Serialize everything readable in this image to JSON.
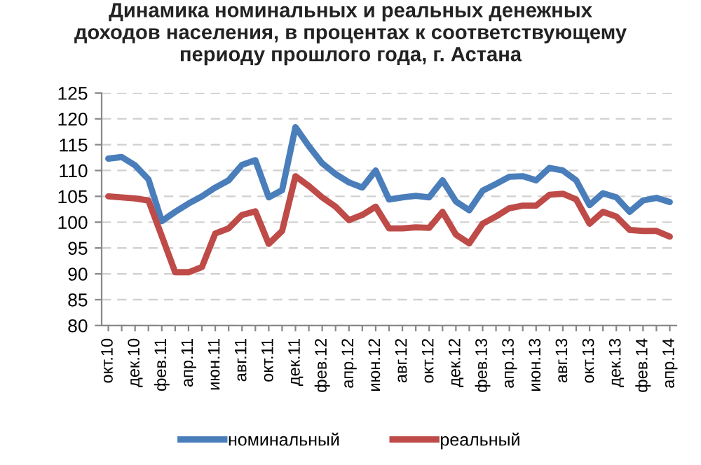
{
  "chart_data": {
    "type": "line",
    "title": "Динамика номинальных и реальных денежных\nдоходов населения, в процентах к соответствующему\nпериоду прошлого года, г. Астана",
    "categories": [
      "окт.10",
      null,
      "дек.10",
      null,
      "фев.11",
      null,
      "апр.11",
      null,
      "июн.11",
      null,
      "авг.11",
      null,
      "окт.11",
      null,
      "дек.11",
      null,
      "фев.12",
      null,
      "апр.12",
      null,
      "июн.12",
      null,
      "авг.12",
      null,
      "окт.12",
      null,
      "дек.12",
      null,
      "фев.13",
      null,
      "апр.13",
      null,
      "июн.13",
      null,
      "авг.13",
      null,
      "окт.13",
      null,
      "дек.13",
      null,
      "фев.14",
      null,
      "апр.14"
    ],
    "series": [
      {
        "name": "номинальный",
        "color": "#4a7ebb",
        "values": [
          112.3,
          112.6,
          111,
          108.3,
          100.2,
          102,
          103.6,
          105,
          106.7,
          108.1,
          111.1,
          112,
          104.8,
          106.2,
          118.4,
          114.7,
          111.4,
          109.3,
          107.7,
          106.7,
          110,
          104.4,
          104.8,
          105.1,
          104.8,
          108.1,
          104,
          102.3,
          106.1,
          107.4,
          108.8,
          108.9,
          108.1,
          110.5,
          110,
          108.1,
          103.3,
          105.6,
          104.8,
          102,
          104.2,
          104.7,
          103.9
        ]
      },
      {
        "name": "реальный",
        "color": "#be4b48",
        "values": [
          105,
          104.8,
          104.6,
          104.2,
          97.3,
          90.3,
          90.3,
          91.3,
          97.8,
          98.8,
          101.4,
          102.1,
          95.8,
          98.3,
          108.9,
          107,
          104.8,
          103,
          100.4,
          101.4,
          103,
          98.8,
          98.8,
          99,
          98.9,
          102,
          97.6,
          95.9,
          99.7,
          101.1,
          102.7,
          103.2,
          103.2,
          105.3,
          105.5,
          104.4,
          99.7,
          102,
          101.1,
          98.5,
          98.3,
          98.3,
          97.2
        ]
      }
    ],
    "ylim": [
      80,
      125
    ],
    "yticks": [
      80,
      85,
      90,
      95,
      100,
      105,
      110,
      115,
      120,
      125
    ],
    "grid": "y",
    "legend": "bottom",
    "marker": "none",
    "line_style": "solid"
  }
}
